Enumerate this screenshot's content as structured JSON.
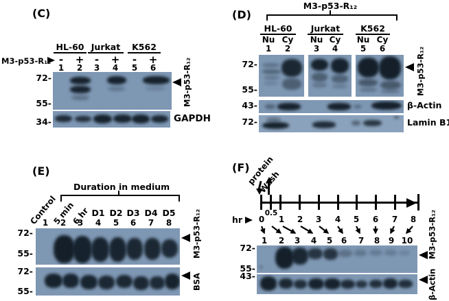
{
  "colors": {
    "page_bg": "#ffffff",
    "text": "#000000",
    "blot_bg": "#7e97b3",
    "blot_bg_light": "#8ba2bc",
    "band_color": "#111c26"
  },
  "panels": {
    "C": {
      "label": "(C)",
      "cell_lines": [
        "HL-60",
        "Jurkat",
        "K562"
      ],
      "row_label": "M3-p53-R₁₂",
      "treatments": [
        "-",
        "+",
        "-",
        "+",
        "-",
        "+"
      ],
      "lane_numbers": [
        "1",
        "2",
        "3",
        "4",
        "5",
        "6"
      ],
      "mw_labels": [
        "72-",
        "55-",
        "34-"
      ],
      "band_arrow_label": "M3-p53-R₁₂",
      "loading_label": "GAPDH"
    },
    "D": {
      "label": "(D)",
      "title": "M3-p53-R₁₂",
      "cell_lines": [
        "HL-60",
        "Jurkat",
        "K562"
      ],
      "fractions": [
        "Nu",
        "Cy",
        "Nu",
        "Cy",
        "Nu",
        "Cy"
      ],
      "lane_numbers": [
        "1",
        "2",
        "3",
        "4",
        "5",
        "6"
      ],
      "mw_labels": [
        "72-",
        "55-",
        "43-",
        "72-"
      ],
      "band_arrow_label": "M3-p53-R₁₂",
      "actin_label": "β-Actin",
      "lamin_label": "Lamin B1"
    },
    "E": {
      "label": "(E)",
      "title": "Duration in medium",
      "time_lane_labels": [
        "Control",
        "5 min",
        "6 hr"
      ],
      "day_lane_labels": [
        "D1",
        "D2",
        "D3",
        "D4",
        "D5"
      ],
      "lane_numbers": [
        "1",
        "2",
        "3",
        "4",
        "5",
        "6",
        "7",
        "8"
      ],
      "mw_labels": [
        "72-",
        "55-",
        "72-",
        "55-"
      ],
      "band_arrow_label": "M3-p53-R₁₂",
      "loading_label": "BSA"
    },
    "F": {
      "label": "(F)",
      "protein_label": "protein",
      "wash_label": "Wash",
      "hr_label": "hr",
      "time_labels": [
        "0",
        "0.5",
        "1",
        "2",
        "3",
        "4",
        "5",
        "6",
        "7",
        "8"
      ],
      "lane_numbers": [
        "1",
        "2",
        "3",
        "4",
        "5",
        "6",
        "7",
        "8",
        "9",
        "10"
      ],
      "mw_labels": [
        "72-",
        "55-",
        "43-"
      ],
      "band_arrow_label": "M3-p53-R₁₂",
      "actin_label": "β-Actin"
    }
  },
  "blot_bands": {
    "C_top": [
      [
        0.145,
        0.13,
        0.175,
        0.2,
        0.95
      ],
      [
        0.145,
        0.37,
        0.175,
        0.2,
        0.92
      ],
      [
        0.155,
        0.62,
        0.15,
        0.13,
        0.3
      ],
      [
        0.455,
        0.11,
        0.165,
        0.21,
        0.95
      ],
      [
        0.465,
        0.38,
        0.14,
        0.13,
        0.25
      ],
      [
        0.76,
        0.11,
        0.225,
        0.21,
        0.95
      ],
      [
        0.78,
        0.38,
        0.17,
        0.11,
        0.18
      ]
    ],
    "C_gapdh": [
      [
        0.02,
        0.26,
        0.145,
        0.42,
        0.88
      ],
      [
        0.185,
        0.3,
        0.14,
        0.38,
        0.82
      ],
      [
        0.345,
        0.2,
        0.16,
        0.54,
        0.95
      ],
      [
        0.515,
        0.22,
        0.155,
        0.5,
        0.93
      ],
      [
        0.675,
        0.2,
        0.15,
        0.54,
        0.95
      ],
      [
        0.835,
        0.24,
        0.15,
        0.46,
        0.9
      ]
    ],
    "D_s1": [
      [
        0.08,
        0.2,
        0.38,
        0.1,
        0.3
      ],
      [
        0.08,
        0.35,
        0.4,
        0.11,
        0.4
      ],
      [
        0.1,
        0.5,
        0.35,
        0.09,
        0.28
      ],
      [
        0.1,
        0.64,
        0.32,
        0.08,
        0.18
      ],
      [
        0.5,
        0.1,
        0.46,
        0.42,
        0.9
      ],
      [
        0.52,
        0.55,
        0.42,
        0.28,
        0.45
      ]
    ],
    "D_s2": [
      [
        0.06,
        0.1,
        0.4,
        0.28,
        0.95
      ],
      [
        0.08,
        0.42,
        0.36,
        0.22,
        0.45
      ],
      [
        0.1,
        0.66,
        0.33,
        0.12,
        0.25
      ],
      [
        0.52,
        0.08,
        0.42,
        0.36,
        0.95
      ],
      [
        0.54,
        0.48,
        0.38,
        0.2,
        0.42
      ],
      [
        0.55,
        0.7,
        0.35,
        0.1,
        0.22
      ]
    ],
    "D_s3": [
      [
        0.04,
        0.06,
        0.44,
        0.48,
        0.97
      ],
      [
        0.06,
        0.58,
        0.4,
        0.18,
        0.5
      ],
      [
        0.08,
        0.78,
        0.36,
        0.1,
        0.28
      ],
      [
        0.48,
        0.04,
        0.46,
        0.55,
        0.97
      ],
      [
        0.52,
        0.62,
        0.42,
        0.2,
        0.5
      ],
      [
        0.53,
        0.82,
        0.38,
        0.1,
        0.28
      ]
    ],
    "D_actin": [
      [
        0.045,
        0.34,
        0.07,
        0.32,
        0.4
      ],
      [
        0.13,
        0.22,
        0.16,
        0.55,
        0.95
      ],
      [
        0.475,
        0.22,
        0.16,
        0.55,
        0.95
      ],
      [
        0.655,
        0.35,
        0.055,
        0.3,
        0.35
      ],
      [
        0.775,
        0.1,
        0.21,
        0.65,
        0.97
      ]
    ],
    "D_lamin": [
      [
        0.05,
        0.1,
        0.1,
        0.28,
        0.35
      ],
      [
        0.025,
        0.38,
        0.185,
        0.4,
        0.95
      ],
      [
        0.37,
        0.36,
        0.16,
        0.38,
        0.88
      ],
      [
        0.64,
        0.3,
        0.06,
        0.28,
        0.45
      ],
      [
        0.72,
        0.26,
        0.13,
        0.36,
        0.8
      ],
      [
        0.935,
        0.04,
        0.03,
        0.16,
        0.55
      ]
    ],
    "E_top": [
      [
        0.125,
        0.18,
        0.145,
        0.78,
        0.97
      ],
      [
        0.255,
        0.2,
        0.135,
        0.76,
        0.95
      ],
      [
        0.385,
        0.24,
        0.125,
        0.68,
        0.93
      ],
      [
        0.51,
        0.24,
        0.12,
        0.68,
        0.93
      ],
      [
        0.63,
        0.27,
        0.115,
        0.6,
        0.9
      ],
      [
        0.75,
        0.27,
        0.115,
        0.6,
        0.9
      ],
      [
        0.87,
        0.3,
        0.115,
        0.52,
        0.88
      ]
    ],
    "E_bsa": [
      [
        0.06,
        0.22,
        0.125,
        0.52,
        0.95
      ],
      [
        0.185,
        0.22,
        0.115,
        0.52,
        0.93
      ],
      [
        0.31,
        0.26,
        0.12,
        0.52,
        0.93
      ],
      [
        0.435,
        0.3,
        0.115,
        0.48,
        0.9
      ],
      [
        0.555,
        0.26,
        0.115,
        0.48,
        0.9
      ],
      [
        0.675,
        0.32,
        0.11,
        0.48,
        0.9
      ],
      [
        0.79,
        0.32,
        0.105,
        0.45,
        0.88
      ],
      [
        0.895,
        0.22,
        0.105,
        0.56,
        0.95
      ]
    ],
    "F_top": [
      [
        0.015,
        0.72,
        0.02,
        0.14,
        0.4
      ],
      [
        0.115,
        0.06,
        0.115,
        0.8,
        0.97
      ],
      [
        0.22,
        0.08,
        0.1,
        0.62,
        0.9
      ],
      [
        0.315,
        0.1,
        0.095,
        0.4,
        0.8
      ],
      [
        0.415,
        0.1,
        0.09,
        0.42,
        0.8
      ],
      [
        0.51,
        0.14,
        0.085,
        0.28,
        0.3
      ],
      [
        0.605,
        0.14,
        0.08,
        0.26,
        0.25
      ],
      [
        0.7,
        0.14,
        0.08,
        0.24,
        0.22
      ],
      [
        0.795,
        0.15,
        0.075,
        0.22,
        0.2
      ],
      [
        0.885,
        0.17,
        0.07,
        0.2,
        0.15
      ]
    ],
    "F_actin": [
      [
        0.02,
        0.12,
        0.105,
        0.7,
        0.97
      ],
      [
        0.135,
        0.22,
        0.09,
        0.52,
        0.9
      ],
      [
        0.23,
        0.28,
        0.08,
        0.44,
        0.85
      ],
      [
        0.32,
        0.2,
        0.1,
        0.56,
        0.95
      ],
      [
        0.42,
        0.2,
        0.1,
        0.56,
        0.95
      ],
      [
        0.52,
        0.26,
        0.09,
        0.46,
        0.88
      ],
      [
        0.615,
        0.3,
        0.075,
        0.4,
        0.8
      ],
      [
        0.7,
        0.28,
        0.08,
        0.42,
        0.85
      ],
      [
        0.785,
        0.2,
        0.09,
        0.52,
        0.92
      ],
      [
        0.88,
        0.26,
        0.09,
        0.42,
        0.85
      ]
    ]
  }
}
